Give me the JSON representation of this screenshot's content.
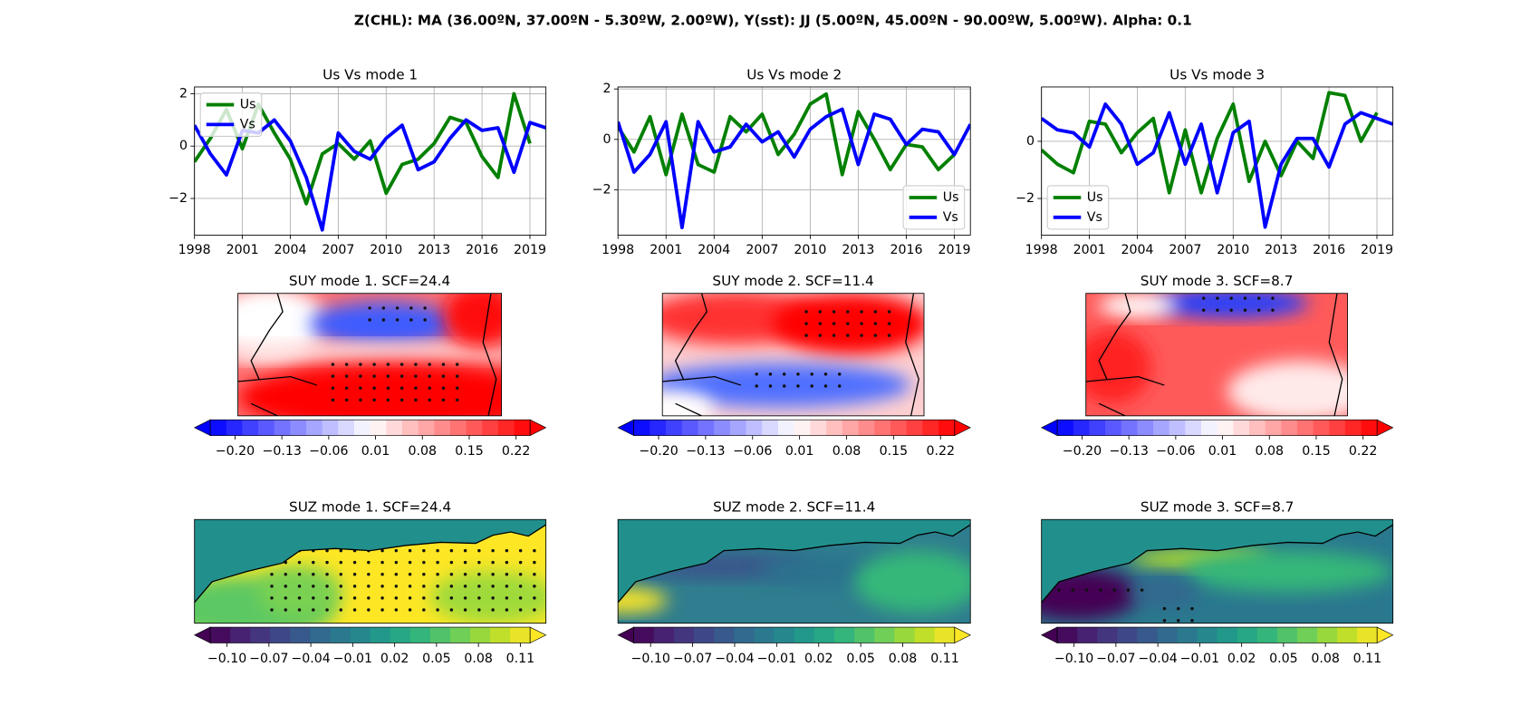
{
  "title": "Z(CHL): MA (36.00ºN, 37.00ºN - 5.30ºW, 2.00ºW), Y(sst): JJ (5.00ºN, 45.00ºN - 90.00ºW, 5.00ºW). Alpha: 0.1",
  "chart_data": [
    {
      "type": "line",
      "title": "Us Vs mode 1",
      "legend": "upper left",
      "grid": true,
      "x": [
        1998,
        1999,
        2000,
        2001,
        2002,
        2003,
        2004,
        2005,
        2006,
        2007,
        2008,
        2009,
        2010,
        2011,
        2012,
        2013,
        2014,
        2015,
        2016,
        2017,
        2018,
        2019,
        2020
      ],
      "xlim": [
        1998,
        2020
      ],
      "xticks": [
        1998,
        2001,
        2004,
        2007,
        2010,
        2013,
        2016,
        2019
      ],
      "ylim": [
        -3.4,
        2.26
      ],
      "yticks": [
        {
          "value": -2,
          "label": "−2"
        },
        0,
        2
      ],
      "series": [
        {
          "name": "Us",
          "color": "#008000",
          "values": [
            -0.6,
            0.3,
            1.4,
            -0.1,
            1.6,
            0.5,
            -0.5,
            -2.2,
            -0.3,
            0.1,
            -0.5,
            0.2,
            -1.8,
            -0.7,
            -0.5,
            0.1,
            1.1,
            0.9,
            -0.4,
            -1.2,
            2.0,
            0.1,
            null
          ]
        },
        {
          "name": "Vs",
          "color": "#0000ff",
          "values": [
            0.8,
            -0.3,
            -1.1,
            0.6,
            0.5,
            1.0,
            0.2,
            -1.2,
            -3.2,
            0.5,
            -0.2,
            -0.5,
            0.3,
            0.8,
            -0.9,
            -0.6,
            0.3,
            1.0,
            0.6,
            0.7,
            -1.0,
            0.9,
            0.7
          ]
        }
      ]
    },
    {
      "type": "line",
      "title": "Us Vs mode 2",
      "legend": "lower right",
      "grid": true,
      "x": [
        1998,
        1999,
        2000,
        2001,
        2002,
        2003,
        2004,
        2005,
        2006,
        2007,
        2008,
        2009,
        2010,
        2011,
        2012,
        2013,
        2014,
        2015,
        2016,
        2017,
        2018,
        2019,
        2020
      ],
      "xlim": [
        1998,
        2020
      ],
      "xticks": [
        1998,
        2001,
        2004,
        2007,
        2010,
        2013,
        2016,
        2019
      ],
      "ylim": [
        -3.8,
        2.08
      ],
      "yticks": [
        {
          "value": -2,
          "label": "−2"
        },
        0,
        2
      ],
      "series": [
        {
          "name": "Us",
          "color": "#008000",
          "values": [
            0.5,
            -0.5,
            0.9,
            -1.4,
            1.0,
            -1.0,
            -1.3,
            0.9,
            0.3,
            1.0,
            -0.6,
            0.2,
            1.4,
            1.8,
            -1.4,
            1.1,
            0.0,
            -1.2,
            -0.2,
            -0.3,
            -1.2,
            -0.6,
            null
          ]
        },
        {
          "name": "Vs",
          "color": "#0000ff",
          "values": [
            0.7,
            -1.3,
            -0.6,
            0.7,
            -3.5,
            0.7,
            -0.5,
            -0.3,
            0.6,
            -0.1,
            0.3,
            -0.7,
            0.4,
            0.9,
            1.2,
            -1.0,
            1.0,
            0.8,
            -0.2,
            0.4,
            0.3,
            -0.6,
            0.6
          ]
        }
      ]
    },
    {
      "type": "line",
      "title": "Us Vs mode 3",
      "legend": "lower left",
      "grid": true,
      "x": [
        1998,
        1999,
        2000,
        2001,
        2002,
        2003,
        2004,
        2005,
        2006,
        2007,
        2008,
        2009,
        2010,
        2011,
        2012,
        2013,
        2014,
        2015,
        2016,
        2017,
        2018,
        2019,
        2020
      ],
      "xlim": [
        1998,
        2020
      ],
      "xticks": [
        1998,
        2001,
        2004,
        2007,
        2010,
        2013,
        2016,
        2019
      ],
      "ylim": [
        -3.28,
        1.9
      ],
      "yticks": [
        {
          "value": -2,
          "label": "−2"
        },
        0
      ],
      "series": [
        {
          "name": "Us",
          "color": "#008000",
          "values": [
            -0.3,
            -0.8,
            -1.1,
            0.7,
            0.6,
            -0.4,
            0.3,
            0.8,
            -1.8,
            0.4,
            -1.8,
            0.1,
            1.3,
            -1.4,
            0.0,
            -1.2,
            0.0,
            -0.6,
            1.7,
            1.6,
            0.0,
            1.0,
            null
          ]
        },
        {
          "name": "Vs",
          "color": "#0000ff",
          "values": [
            0.8,
            0.4,
            0.3,
            -0.2,
            1.3,
            0.6,
            -0.8,
            -0.4,
            1.0,
            -0.8,
            0.6,
            -1.8,
            0.3,
            0.7,
            -3.0,
            -0.8,
            0.1,
            0.1,
            -0.9,
            0.6,
            1.0,
            0.8,
            0.6
          ]
        }
      ]
    },
    {
      "type": "map",
      "title": "SUY mode 1. SCF=24.4",
      "colormap": "bwr",
      "clim": [
        -0.237,
        0.241
      ],
      "cticks": [
        {
          "value": -0.2,
          "label": "−0.20"
        },
        {
          "value": -0.13,
          "label": "−0.13"
        },
        {
          "value": -0.06,
          "label": "−0.06"
        },
        0.01,
        0.08,
        0.15,
        0.22
      ]
    },
    {
      "type": "map",
      "title": "SUY mode 2. SCF=11.4",
      "colormap": "bwr",
      "clim": [
        -0.237,
        0.241
      ],
      "cticks": [
        {
          "value": -0.2,
          "label": "−0.20"
        },
        {
          "value": -0.13,
          "label": "−0.13"
        },
        {
          "value": -0.06,
          "label": "−0.06"
        },
        0.01,
        0.08,
        0.15,
        0.22
      ]
    },
    {
      "type": "map",
      "title": "SUY mode 3. SCF=8.7",
      "colormap": "bwr",
      "clim": [
        -0.237,
        0.241
      ],
      "cticks": [
        {
          "value": -0.2,
          "label": "−0.20"
        },
        {
          "value": -0.13,
          "label": "−0.13"
        },
        {
          "value": -0.06,
          "label": "−0.06"
        },
        0.01,
        0.08,
        0.15,
        0.22
      ]
    },
    {
      "type": "map",
      "title": "SUZ mode 1. SCF=24.4",
      "colormap": "viridis",
      "clim": [
        -0.112,
        0.117
      ],
      "cticks": [
        {
          "value": -0.1,
          "label": "−0.10"
        },
        {
          "value": -0.07,
          "label": "−0.07"
        },
        {
          "value": -0.04,
          "label": "−0.04"
        },
        {
          "value": -0.01,
          "label": "−0.01"
        },
        0.02,
        0.05,
        0.08,
        0.11
      ]
    },
    {
      "type": "map",
      "title": "SUZ mode 2. SCF=11.4",
      "colormap": "viridis",
      "clim": [
        -0.112,
        0.117
      ],
      "cticks": [
        {
          "value": -0.1,
          "label": "−0.10"
        },
        {
          "value": -0.07,
          "label": "−0.07"
        },
        {
          "value": -0.04,
          "label": "−0.04"
        },
        {
          "value": -0.01,
          "label": "−0.01"
        },
        0.02,
        0.05,
        0.08,
        0.11
      ]
    },
    {
      "type": "map",
      "title": "SUZ mode 3. SCF=8.7",
      "colormap": "viridis",
      "clim": [
        -0.112,
        0.117
      ],
      "cticks": [
        {
          "value": -0.1,
          "label": "−0.10"
        },
        {
          "value": -0.07,
          "label": "−0.07"
        },
        {
          "value": -0.04,
          "label": "−0.04"
        },
        {
          "value": -0.01,
          "label": "−0.01"
        },
        0.02,
        0.05,
        0.08,
        0.11
      ]
    }
  ]
}
